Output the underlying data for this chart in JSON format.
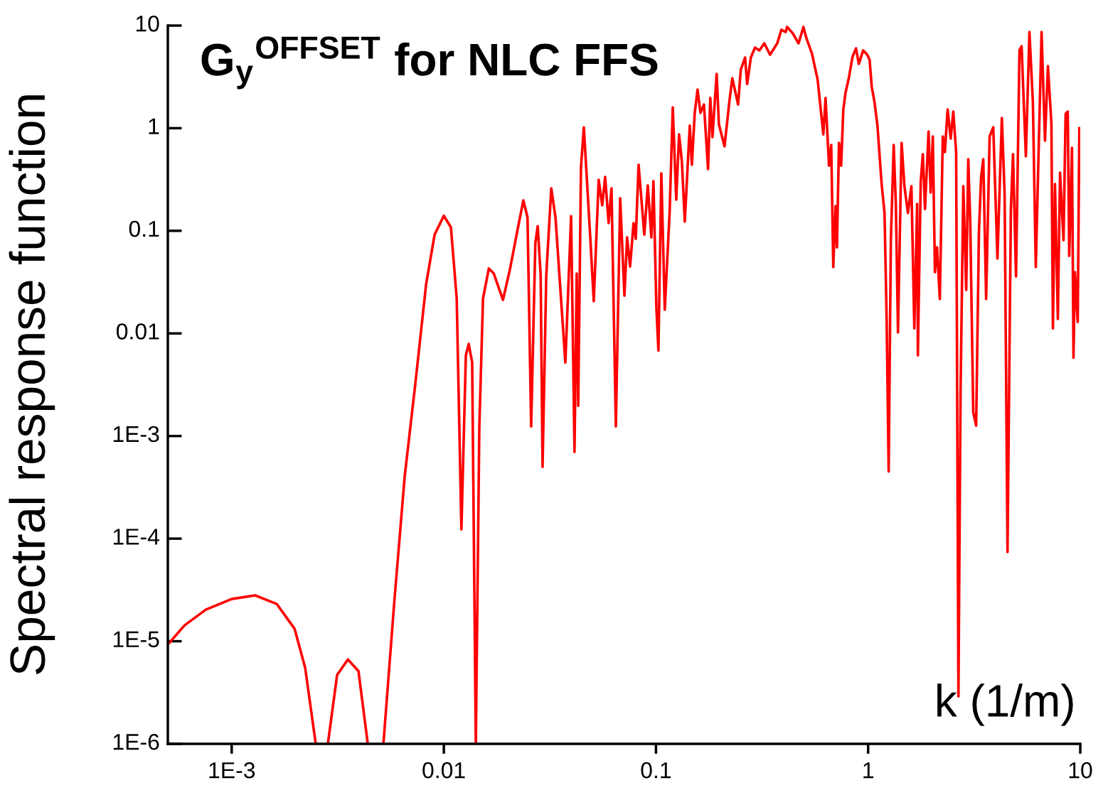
{
  "chart_data": {
    "type": "line",
    "title": "G$_{y}$$^{OFFSET}$ for NLC FFS",
    "xlabel": "k (1/m)",
    "ylabel": "Spectral response function",
    "log": "xy",
    "grid": false,
    "legend": false,
    "marker": "none",
    "line_style": "solid",
    "xlim": [
      0.0005,
      10
    ],
    "ylim": [
      1e-06,
      10
    ],
    "xticks": [
      {
        "value": 0.001,
        "label": "1E-3"
      },
      0.01,
      0.1,
      1,
      10
    ],
    "yticks": [
      {
        "value": 1e-06,
        "label": "1E-6"
      },
      {
        "value": 1e-05,
        "label": "1E-5"
      },
      {
        "value": 0.0001,
        "label": "1E-4"
      },
      {
        "value": 0.001,
        "label": "1E-3"
      },
      0.01,
      0.1,
      1,
      10
    ],
    "series": [
      {
        "color": "#ff0000",
        "x": [
          0.0005,
          0.0006,
          0.000755,
          0.001,
          0.00129,
          0.00163,
          0.00198,
          0.00222,
          0.00249,
          0.0026,
          0.00284,
          0.00314,
          0.00353,
          0.00396,
          0.00438,
          0.0048,
          0.00519,
          0.00583,
          0.00654,
          0.00734,
          0.00825,
          0.00905,
          0.01,
          0.0108,
          0.0115,
          0.0121,
          0.0127,
          0.0131,
          0.0136,
          0.01415,
          0.0147,
          0.0153,
          0.0163,
          0.0172,
          0.019,
          0.0205,
          0.0223,
          0.0237,
          0.0248,
          0.0258,
          0.027,
          0.0277,
          0.0286,
          0.0292,
          0.0304,
          0.0321,
          0.0336,
          0.0374,
          0.0398,
          0.0413,
          0.0423,
          0.043,
          0.0443,
          0.0457,
          0.049,
          0.0509,
          0.0537,
          0.0558,
          0.0576,
          0.0598,
          0.0617,
          0.0647,
          0.0678,
          0.071,
          0.0731,
          0.0755,
          0.0784,
          0.0803,
          0.0828,
          0.0881,
          0.0915,
          0.0951,
          0.0973,
          0.1004,
          0.1027,
          0.106,
          0.11,
          0.116,
          0.12,
          0.1246,
          0.1285,
          0.1325,
          0.1367,
          0.1443,
          0.1476,
          0.1523,
          0.157,
          0.162,
          0.1683,
          0.176,
          0.1803,
          0.1846,
          0.1932,
          0.198,
          0.2104,
          0.222,
          0.229,
          0.2438,
          0.251,
          0.263,
          0.269,
          0.28,
          0.293,
          0.307,
          0.324,
          0.345,
          0.373,
          0.39,
          0.409,
          0.415,
          0.4415,
          0.47,
          0.4955,
          0.511,
          0.543,
          0.578,
          0.615,
          0.63,
          0.654,
          0.67,
          0.685,
          0.702,
          0.713,
          0.729,
          0.746,
          0.764,
          0.782,
          0.812,
          0.844,
          0.877,
          0.904,
          0.948,
          0.99,
          1.016,
          1.04,
          1.072,
          1.106,
          1.158,
          1.195,
          1.222,
          1.25,
          1.28,
          1.32,
          1.351,
          1.383,
          1.438,
          1.483,
          1.54,
          1.6,
          1.651,
          1.703,
          1.716,
          1.77,
          1.811,
          1.854,
          1.927,
          1.972,
          2.018,
          2.065,
          2.113,
          2.178,
          2.249,
          2.3,
          2.37,
          2.45,
          2.52,
          2.6,
          2.665,
          2.727,
          2.81,
          2.9,
          2.965,
          3.03,
          3.13,
          3.23,
          3.33,
          3.41,
          3.49,
          3.6,
          3.74,
          3.89,
          4.07,
          4.27,
          4.4,
          4.54,
          4.71,
          4.82,
          4.98,
          5.17,
          5.29,
          5.54,
          5.76,
          5.98,
          6.17,
          6.57,
          6.82,
          7.04,
          7.31,
          7.43,
          7.6,
          7.84,
          8.03,
          8.34,
          8.53,
          8.73,
          8.87,
          9.14,
          9.29,
          9.44,
          9.73,
          9.9
        ],
        "values": [
          9.3e-06,
          1.43e-05,
          2.03e-05,
          2.58e-05,
          2.8e-05,
          2.31e-05,
          1.32e-05,
          5.5e-06,
          1e-06,
          null,
          1e-06,
          4.7e-06,
          6.65e-06,
          5.1e-06,
          1e-06,
          null,
          1e-06,
          2.31e-05,
          0.000406,
          0.00324,
          0.0301,
          0.092,
          0.14,
          0.108,
          0.0219,
          0.000123,
          0.0061,
          0.0079,
          0.0052,
          1e-06,
          0.00124,
          0.0219,
          0.0429,
          0.0383,
          0.0212,
          0.0422,
          0.1045,
          0.198,
          0.135,
          0.00124,
          0.076,
          0.111,
          0.0371,
          0.0005,
          0.0371,
          0.259,
          0.135,
          0.0052,
          0.139,
          0.0007,
          0.0383,
          0.00197,
          0.412,
          1.02,
          0.0863,
          0.0206,
          0.314,
          0.177,
          0.335,
          0.119,
          0.259,
          0.00124,
          0.2075,
          0.0233,
          0.0863,
          0.0449,
          0.119,
          0.0836,
          0.44,
          0.092,
          0.277,
          0.0863,
          0.304,
          0.0181,
          0.0068,
          0.363,
          0.017,
          0.153,
          1.6,
          0.201,
          0.871,
          0.468,
          0.123,
          1.06,
          0.44,
          1.41,
          2.38,
          1.41,
          1.7,
          0.399,
          1.97,
          0.818,
          3.38,
          1.09,
          0.665,
          1.85,
          3.07,
          1.7,
          3.72,
          4.88,
          2.7,
          4.88,
          6.1,
          5.73,
          6.71,
          5.2,
          6.71,
          9.1,
          8.66,
          9.7,
          8.4,
          6.71,
          9.7,
          7.6,
          5.37,
          2.98,
          0.871,
          1.97,
          0.432,
          0.687,
          0.0442,
          0.174,
          0.069,
          0.72,
          0.432,
          1.52,
          2.2,
          3.12,
          4.96,
          6.0,
          4.23,
          5.73,
          5.2,
          4.65,
          2.54,
          1.79,
          1.07,
          0.286,
          0.149,
          0.0145,
          0.00045,
          0.081,
          0.687,
          0.183,
          0.0102,
          0.72,
          0.272,
          0.149,
          0.272,
          0.0112,
          0.183,
          0.0061,
          0.304,
          0.558,
          0.163,
          0.929,
          0.236,
          0.832,
          0.0395,
          0.069,
          0.0216,
          0.832,
          0.585,
          1.52,
          0.792,
          1.45,
          0.585,
          2.9e-06,
          0.00259,
          0.272,
          0.0265,
          0.499,
          0.121,
          0.00171,
          0.00126,
          0.0997,
          0.335,
          0.499,
          0.0216,
          0.832,
          1.02,
          0.0536,
          1.26,
          0.225,
          7.4e-05,
          0.163,
          0.558,
          0.0359,
          5.73,
          6.29,
          0.532,
          8.66,
          1.79,
          0.0442,
          8.66,
          0.755,
          4.03,
          1.12,
          0.0112,
          0.286,
          0.0138,
          0.368,
          0.081,
          1.38,
          1.45,
          0.057,
          0.644,
          0.0058,
          0.0395,
          0.0129,
          1.0
        ]
      }
    ]
  }
}
